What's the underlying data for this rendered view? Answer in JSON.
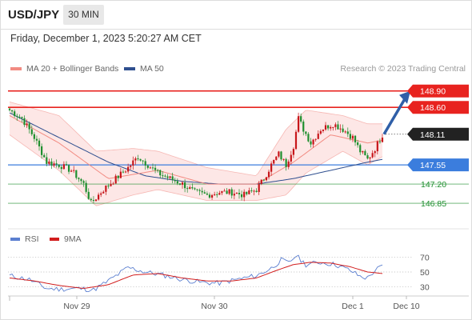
{
  "header": {
    "symbol": "USD/JPY",
    "timeframe": "30 MIN",
    "datetime": "Friday, December 1, 2023 5:20:27 AM CET"
  },
  "legend": {
    "ma20_label": "MA 20 + Bollinger Bands",
    "ma50_label": "MA 50",
    "credit": "Research © 2023 Trading Central"
  },
  "rsi_legend": {
    "rsi_label": "RSI",
    "ma_label": "9MA"
  },
  "colors": {
    "ma20": "#f28b82",
    "ma50": "#2f4f8f",
    "resistance": "#e8231f",
    "support": "#3b7ddd",
    "pivot": "#1f8f2f",
    "candle_up": "#c7161a",
    "candle_down": "#1f8f2f",
    "current": "#222222",
    "arrow": "#2f5fa8",
    "rsi": "#5b7fd0",
    "rsi_ma": "#d21e1e",
    "band_fill": "#fde3e2"
  },
  "chart_data": [
    {
      "type": "candlestick",
      "title": "USD/JPY 30 MIN",
      "x_tick_labels": [
        "Nov 29",
        "Nov 30",
        "Dec 1",
        "Dec 10"
      ],
      "ylim": [
        146.5,
        149.1
      ],
      "price_levels": [
        {
          "value": 148.9,
          "label": "148.90",
          "kind": "resistance"
        },
        {
          "value": 148.6,
          "label": "148.60",
          "kind": "resistance"
        },
        {
          "value": 148.11,
          "label": "148.11",
          "kind": "current"
        },
        {
          "value": 147.55,
          "label": "147.55",
          "kind": "support"
        },
        {
          "value": 147.2,
          "label": "147.20",
          "kind": "pivot"
        },
        {
          "value": 146.85,
          "label": "146.85",
          "kind": "pivot"
        }
      ],
      "projection": {
        "from": 148.11,
        "to": 148.9
      },
      "ohlc_keypoints": [
        [
          0,
          148.55
        ],
        [
          5,
          148.4
        ],
        [
          10,
          148.05
        ],
        [
          15,
          147.6
        ],
        [
          20,
          147.55
        ],
        [
          25,
          147.45
        ],
        [
          30,
          147.2
        ],
        [
          33,
          146.85
        ],
        [
          35,
          146.95
        ],
        [
          38,
          147.1
        ],
        [
          43,
          147.3
        ],
        [
          48,
          147.5
        ],
        [
          52,
          147.7
        ],
        [
          56,
          147.55
        ],
        [
          60,
          147.4
        ],
        [
          65,
          147.3
        ],
        [
          70,
          147.2
        ],
        [
          75,
          147.05
        ],
        [
          80,
          147.0
        ],
        [
          85,
          147.05
        ],
        [
          90,
          147.05
        ],
        [
          95,
          147.0
        ],
        [
          100,
          147.1
        ],
        [
          103,
          147.3
        ],
        [
          106,
          147.55
        ],
        [
          109,
          147.75
        ],
        [
          112,
          147.55
        ],
        [
          115,
          147.9
        ],
        [
          117,
          148.4
        ],
        [
          119,
          148.2
        ],
        [
          122,
          147.95
        ],
        [
          126,
          148.2
        ],
        [
          131,
          148.3
        ],
        [
          135,
          148.2
        ],
        [
          139,
          148.05
        ],
        [
          142,
          147.8
        ],
        [
          145,
          147.65
        ],
        [
          148,
          147.85
        ],
        [
          151,
          148.1
        ]
      ],
      "ma20": [
        [
          0,
          148.45
        ],
        [
          20,
          147.95
        ],
        [
          40,
          147.3
        ],
        [
          60,
          147.45
        ],
        [
          80,
          147.2
        ],
        [
          100,
          147.2
        ],
        [
          115,
          147.6
        ],
        [
          130,
          148.1
        ],
        [
          145,
          147.95
        ],
        [
          151,
          148.0
        ]
      ],
      "ma50": [
        [
          0,
          148.5
        ],
        [
          20,
          148.05
        ],
        [
          40,
          147.6
        ],
        [
          55,
          147.35
        ],
        [
          70,
          147.25
        ],
        [
          85,
          147.2
        ],
        [
          100,
          147.2
        ],
        [
          115,
          147.3
        ],
        [
          130,
          147.45
        ],
        [
          145,
          147.6
        ],
        [
          151,
          147.65
        ]
      ],
      "bb_upper": [
        [
          0,
          148.7
        ],
        [
          20,
          148.45
        ],
        [
          35,
          147.8
        ],
        [
          50,
          147.85
        ],
        [
          60,
          147.8
        ],
        [
          80,
          147.5
        ],
        [
          100,
          147.35
        ],
        [
          112,
          148.2
        ],
        [
          120,
          148.55
        ],
        [
          135,
          148.45
        ],
        [
          145,
          148.3
        ],
        [
          151,
          148.3
        ]
      ],
      "bb_lower": [
        [
          0,
          148.1
        ],
        [
          20,
          147.45
        ],
        [
          35,
          146.8
        ],
        [
          50,
          147.0
        ],
        [
          60,
          147.1
        ],
        [
          80,
          146.9
        ],
        [
          100,
          146.9
        ],
        [
          112,
          147.0
        ],
        [
          120,
          147.4
        ],
        [
          135,
          147.8
        ],
        [
          145,
          147.55
        ],
        [
          151,
          147.7
        ]
      ]
    },
    {
      "type": "line",
      "title": "RSI",
      "ylim": [
        20,
        80
      ],
      "y_ticks": [
        30,
        50,
        70
      ],
      "series": [
        {
          "name": "RSI",
          "values": [
            [
              0,
              45
            ],
            [
              8,
              40
            ],
            [
              15,
              28
            ],
            [
              20,
              27
            ],
            [
              28,
              28
            ],
            [
              34,
              26
            ],
            [
              40,
              38
            ],
            [
              48,
              56
            ],
            [
              55,
              50
            ],
            [
              62,
              46
            ],
            [
              70,
              40
            ],
            [
              78,
              36
            ],
            [
              85,
              35
            ],
            [
              92,
              40
            ],
            [
              100,
              45
            ],
            [
              106,
              55
            ],
            [
              110,
              66
            ],
            [
              113,
              62
            ],
            [
              116,
              72
            ],
            [
              120,
              60
            ],
            [
              126,
              63
            ],
            [
              132,
              60
            ],
            [
              138,
              52
            ],
            [
              142,
              44
            ],
            [
              145,
              42
            ],
            [
              148,
              52
            ],
            [
              151,
              58
            ]
          ]
        },
        {
          "name": "9MA",
          "values": [
            [
              0,
              42
            ],
            [
              10,
              38
            ],
            [
              20,
              32
            ],
            [
              30,
              28
            ],
            [
              40,
              33
            ],
            [
              50,
              46
            ],
            [
              60,
              48
            ],
            [
              70,
              42
            ],
            [
              80,
              38
            ],
            [
              90,
              38
            ],
            [
              100,
              42
            ],
            [
              108,
              52
            ],
            [
              115,
              60
            ],
            [
              122,
              63
            ],
            [
              130,
              62
            ],
            [
              138,
              57
            ],
            [
              145,
              50
            ],
            [
              151,
              48
            ]
          ]
        }
      ]
    }
  ]
}
